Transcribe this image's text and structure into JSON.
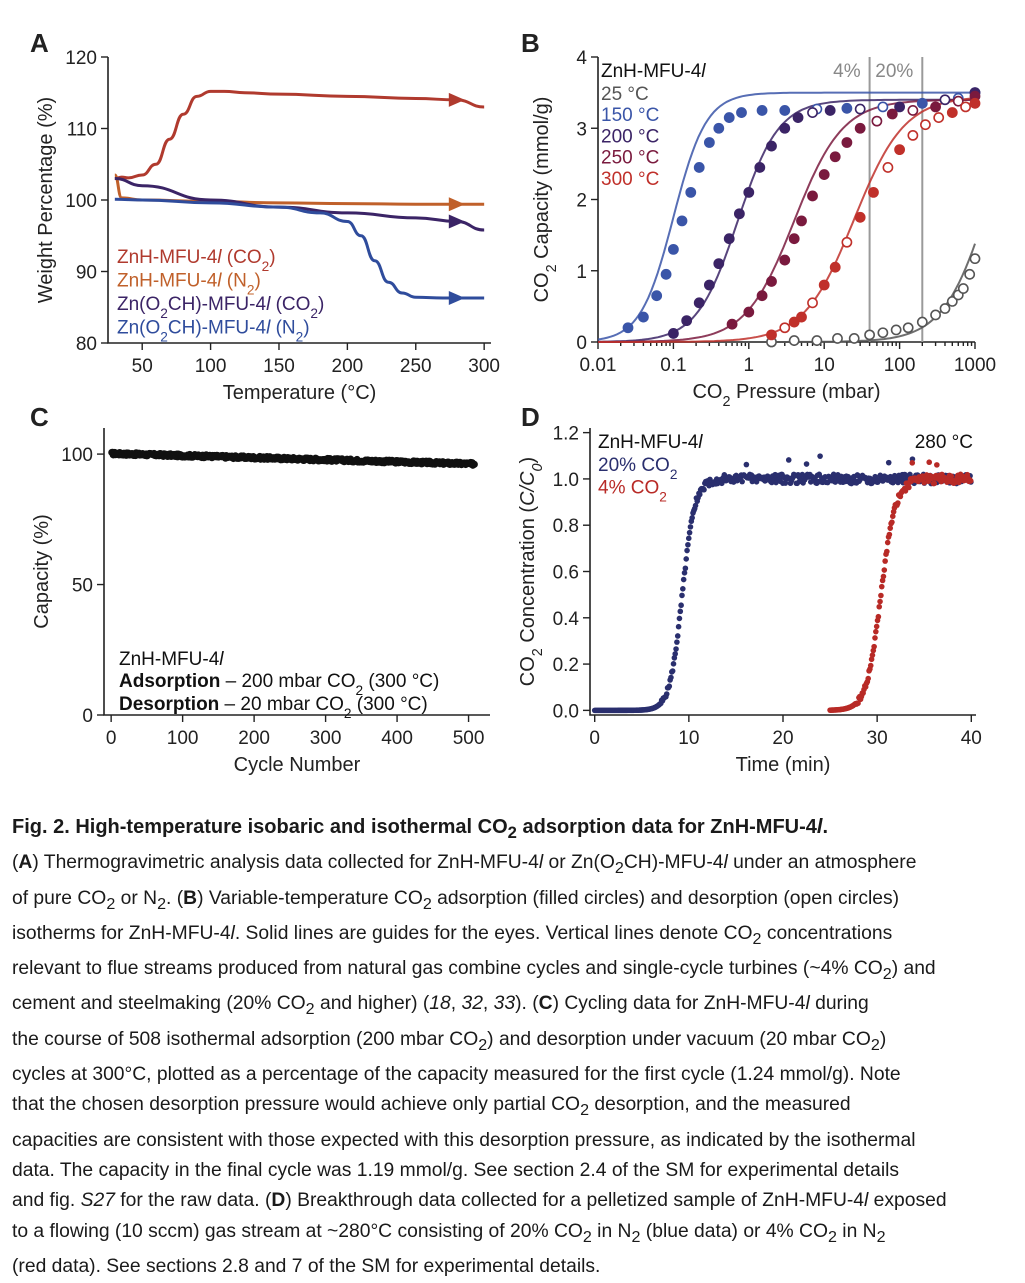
{
  "panel_labels": [
    "A",
    "B",
    "C",
    "D"
  ],
  "chart_data": [
    {
      "panel": "A",
      "type": "line",
      "xlabel": "Temperature (°C)",
      "ylabel": "Weight Percentage (%)",
      "xlim": [
        25,
        305
      ],
      "ylim": [
        80,
        120
      ],
      "xticks": [
        50,
        100,
        150,
        200,
        250,
        300
      ],
      "yticks": [
        80,
        90,
        100,
        110,
        120
      ],
      "grid": false,
      "legend_position": "bottom-left",
      "series": [
        {
          "name": "ZnH-MFU-4l (CO2)",
          "color": "#b03a2e",
          "x": [
            30,
            35,
            40,
            50,
            60,
            70,
            80,
            90,
            100,
            110,
            125,
            150,
            200,
            250,
            280,
            300
          ],
          "y": [
            103,
            103.2,
            103.1,
            103.5,
            105,
            108.5,
            112,
            114.5,
            115.2,
            115.2,
            115.0,
            114.8,
            114.5,
            114.2,
            114.0,
            113.0
          ]
        },
        {
          "name": "ZnH-MFU-4l (N2)",
          "color": "#c0602a",
          "x": [
            30,
            35,
            50,
            100,
            150,
            200,
            250,
            280,
            300
          ],
          "y": [
            103.5,
            100.3,
            100.0,
            99.8,
            99.6,
            99.5,
            99.4,
            99.4,
            99.4
          ]
        },
        {
          "name": "Zn(O2CH)-MFU-4l (CO2)",
          "color": "#3b2466",
          "x": [
            30,
            50,
            100,
            150,
            200,
            250,
            280,
            300
          ],
          "y": [
            103.0,
            102.0,
            100.0,
            99.0,
            98.2,
            97.5,
            97.0,
            95.8
          ]
        },
        {
          "name": "Zn(O2CH)-MFU-4l (N2)",
          "color": "#2f4c9c",
          "x": [
            30,
            50,
            100,
            150,
            180,
            200,
            210,
            220,
            230,
            240,
            250,
            270,
            300
          ],
          "y": [
            100.1,
            100.0,
            99.6,
            99.0,
            98.2,
            97.0,
            95.0,
            91.5,
            88.5,
            87.0,
            86.4,
            86.3,
            86.3
          ]
        }
      ]
    },
    {
      "panel": "B",
      "type": "scatter",
      "xlabel": "CO2 Pressure (mbar)",
      "ylabel": "CO2 Capacity (mmol/g)",
      "xscale": "log",
      "xlim": [
        0.01,
        1000
      ],
      "ylim": [
        0,
        4
      ],
      "xticks": [
        0.01,
        0.1,
        1,
        10,
        100,
        1000
      ],
      "xticklabels": [
        "0.01",
        "0.1",
        "1",
        "10",
        "100",
        "1000"
      ],
      "yticks": [
        0,
        1,
        2,
        3,
        4
      ],
      "grid": false,
      "legend_title": "ZnH-MFU-4l",
      "legend_position": "top-left",
      "vertical_lines": [
        {
          "x": 40,
          "label": "4%"
        },
        {
          "x": 200,
          "label": "20%"
        }
      ],
      "series": [
        {
          "name": "25 °C",
          "color": "#555555",
          "qmax": 4.2,
          "K": 0.0006,
          "n": 1.4,
          "x": [
            2,
            4,
            8,
            15,
            25,
            40,
            60,
            90,
            130,
            200,
            300,
            400,
            500,
            600,
            700,
            850,
            1000
          ],
          "y": [
            0.0,
            0.02,
            0.02,
            0.05,
            0.05,
            0.1,
            0.13,
            0.17,
            0.2,
            0.28,
            0.38,
            0.47,
            0.57,
            0.66,
            0.75,
            0.95,
            1.17
          ]
        },
        {
          "name": "150 °C",
          "color": "#3a55a8",
          "qmax": 3.5,
          "K": 10.0,
          "n": 2.0,
          "x": [
            0.025,
            0.04,
            0.06,
            0.08,
            0.1,
            0.13,
            0.17,
            0.22,
            0.3,
            0.4,
            0.55,
            0.8,
            1.5,
            3,
            8,
            20,
            60,
            200,
            600,
            1000
          ],
          "y": [
            0.2,
            0.35,
            0.65,
            0.95,
            1.3,
            1.7,
            2.1,
            2.45,
            2.8,
            3.0,
            3.15,
            3.22,
            3.25,
            3.25,
            3.27,
            3.28,
            3.3,
            3.35,
            3.42,
            3.5
          ]
        },
        {
          "name": "200 °C",
          "color": "#3b2466",
          "qmax": 3.4,
          "K": 1.4,
          "n": 1.6,
          "x": [
            0.1,
            0.15,
            0.22,
            0.3,
            0.4,
            0.55,
            0.75,
            1.0,
            1.4,
            2.0,
            3.0,
            4.5,
            7,
            12,
            30,
            100,
            400,
            1000
          ],
          "y": [
            0.12,
            0.3,
            0.55,
            0.8,
            1.1,
            1.45,
            1.8,
            2.1,
            2.45,
            2.75,
            3.0,
            3.15,
            3.22,
            3.25,
            3.27,
            3.3,
            3.4,
            3.5
          ]
        },
        {
          "name": "250 °C",
          "color": "#7a1a3e",
          "qmax": 3.4,
          "K": 0.25,
          "n": 1.35,
          "x": [
            0.6,
            1,
            1.5,
            2,
            3,
            4,
            5,
            7,
            10,
            14,
            20,
            30,
            50,
            80,
            150,
            300,
            600,
            1000
          ],
          "y": [
            0.25,
            0.42,
            0.65,
            0.85,
            1.15,
            1.45,
            1.7,
            2.05,
            2.35,
            2.6,
            2.8,
            3.0,
            3.1,
            3.2,
            3.25,
            3.3,
            3.38,
            3.45
          ]
        },
        {
          "name": "300 °C",
          "color": "#c0302a",
          "qmax": 3.45,
          "K": 0.04,
          "n": 1.3,
          "x": [
            2,
            3,
            4,
            5,
            7,
            10,
            14,
            20,
            30,
            45,
            70,
            100,
            150,
            220,
            330,
            500,
            750,
            1000
          ],
          "y": [
            0.1,
            0.2,
            0.28,
            0.35,
            0.55,
            0.8,
            1.05,
            1.4,
            1.75,
            2.1,
            2.45,
            2.7,
            2.9,
            3.05,
            3.15,
            3.22,
            3.3,
            3.35
          ]
        }
      ]
    },
    {
      "panel": "C",
      "type": "scatter",
      "xlabel": "Cycle Number",
      "ylabel": "Capacity (%)",
      "xlim": [
        -10,
        530
      ],
      "ylim": [
        0,
        110
      ],
      "xticks": [
        0,
        100,
        200,
        300,
        400,
        500
      ],
      "yticks": [
        0,
        50,
        100
      ],
      "grid": false,
      "series": [
        {
          "name": "",
          "color": "#111111",
          "cycles": 508,
          "start": 100.2,
          "end": 96.2
        }
      ],
      "annotation": {
        "compound": "ZnH-MFU-4l",
        "adsorption_label": "Adsorption",
        "adsorption_text": " – 200 mbar CO2 (300 °C)",
        "desorption_label": "Desorption",
        "desorption_text": " – 20 mbar CO2 (300 °C)"
      }
    },
    {
      "panel": "D",
      "type": "scatter",
      "xlabel": "Time (min)",
      "ylabel": "CO2 Concentration (C/C0)",
      "xlim": [
        -0.5,
        40.5
      ],
      "ylim": [
        -0.02,
        1.22
      ],
      "xticks": [
        0,
        10,
        20,
        30,
        40
      ],
      "yticks": [
        0.0,
        0.2,
        0.4,
        0.6,
        0.8,
        1.0,
        1.2
      ],
      "yticklabels": [
        "0.0",
        "0.2",
        "0.4",
        "0.6",
        "0.8",
        "1.0",
        "1.2"
      ],
      "grid": false,
      "legend_title": "ZnH-MFU-4l",
      "legend_position": "top-left",
      "temperature_label": "280 °C",
      "series": [
        {
          "name": "20% CO2",
          "color": "#2a2f6e",
          "breakthrough_min": 9.3,
          "steepness": 1.5,
          "plateau": 1.0
        },
        {
          "name": "4% CO2",
          "color": "#b82a26",
          "breakthrough_min": 30.4,
          "steepness": 1.3,
          "plateau": 1.0
        }
      ]
    }
  ],
  "caption": {
    "title_prefix": "Fig. 2. High-temperature isobaric and isothermal CO",
    "title_sub": "2",
    "title_suffix": " adsorption data for ZnH-MFU-4",
    "title_italic": "l",
    "title_end": ".",
    "line1": "(A) Thermogravimetric analysis data collected for ZnH-MFU-4l or Zn(O2CH)-MFU-4l under an atmosphere",
    "line2": "of pure CO2 or N2. (B) Variable-temperature CO2 adsorption (filled circles) and desorption (open circles)",
    "line3": "isotherms for ZnH-MFU-4l. Solid lines are guides for the eyes. Vertical lines denote CO2 concentrations",
    "line4": "relevant to flue streams produced from natural gas combine cycles and single-cycle turbines (~4% CO2) and",
    "line5": "cement and steelmaking (20% CO2 and higher) (18, 32, 33). (C) Cycling data for ZnH-MFU-4l during",
    "line6": "the course of 508 isothermal adsorption (200 mbar CO2) and desorption under vacuum (20 mbar CO2)",
    "line7": "cycles at 300°C, plotted as a percentage of the capacity measured for the first cycle (1.24 mmol/g). Note",
    "line8": "that the chosen desorption pressure would achieve only partial CO2 desorption, and the measured",
    "line9": "capacities are consistent with those expected with this desorption pressure, as indicated by the isothermal",
    "line10": "data. The capacity in the final cycle was 1.19 mmol/g. See section 2.4 of the SM for experimental details",
    "line11": "and fig. S27 for the raw data. (D) Breakthrough data collected for a pelletized sample of ZnH-MFU-4l exposed",
    "line12": "to a flowing (10 sccm) gas stream at ~280°C consisting of 20% CO2 in N2 (blue data) or 4% CO2 in N2",
    "line13": "(red data). See sections 2.8 and 7 of the SM for experimental details."
  }
}
